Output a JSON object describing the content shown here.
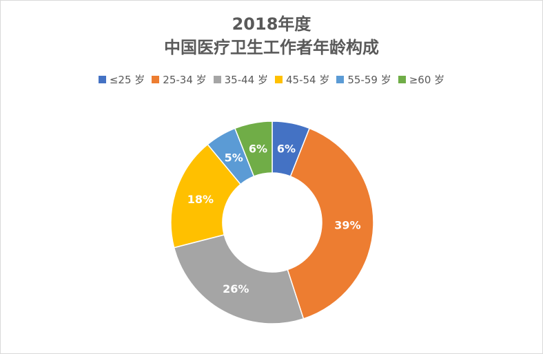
{
  "chart_data": {
    "type": "pie",
    "donut": true,
    "title": "2018年度",
    "subtitle": "中国医疗卫生工作者年龄构成",
    "categories": [
      "≤25 岁",
      "25-34 岁",
      "35-44 岁",
      "45-54 岁",
      "55-59 岁",
      "≥60 岁"
    ],
    "values": [
      6,
      39,
      26,
      18,
      5,
      6
    ],
    "data_labels": [
      "6%",
      "39%",
      "26%",
      "18%",
      "5%",
      "6%"
    ],
    "colors": [
      "#4472C4",
      "#ED7D31",
      "#A5A5A5",
      "#FFC000",
      "#5B9BD5",
      "#70AD47"
    ],
    "legend": "top"
  }
}
